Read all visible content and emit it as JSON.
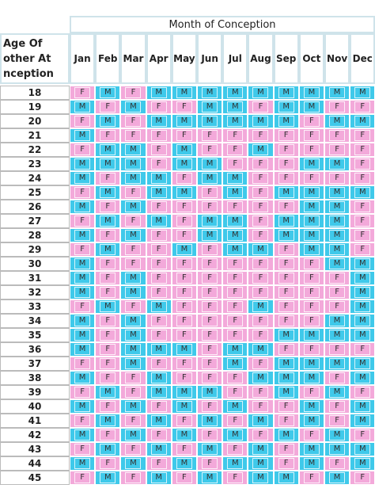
{
  "table": {
    "title": "Month of Conception",
    "corner": [
      "Age Of",
      "other At",
      "nception"
    ],
    "months": [
      "Jan",
      "Feb",
      "Mar",
      "Apr",
      "May",
      "Jun",
      "Jul",
      "Aug",
      "Sep",
      "Oct",
      "Nov",
      "Dec"
    ],
    "rows": [
      {
        "age": "18",
        "cells": [
          "F",
          "M",
          "F",
          "M",
          "M",
          "M",
          "M",
          "M",
          "M",
          "M",
          "M",
          "M"
        ]
      },
      {
        "age": "19",
        "cells": [
          "M",
          "F",
          "M",
          "F",
          "F",
          "M",
          "M",
          "F",
          "M",
          "M",
          "F",
          "F"
        ]
      },
      {
        "age": "20",
        "cells": [
          "F",
          "M",
          "F",
          "M",
          "M",
          "M",
          "M",
          "M",
          "M",
          "F",
          "M",
          "M"
        ]
      },
      {
        "age": "21",
        "cells": [
          "M",
          "F",
          "F",
          "F",
          "F",
          "F",
          "F",
          "F",
          "F",
          "F",
          "F",
          "F"
        ]
      },
      {
        "age": "22",
        "cells": [
          "F",
          "M",
          "M",
          "F",
          "M",
          "F",
          "F",
          "M",
          "F",
          "F",
          "F",
          "F"
        ]
      },
      {
        "age": "23",
        "cells": [
          "M",
          "M",
          "M",
          "F",
          "M",
          "M",
          "F",
          "F",
          "F",
          "M",
          "M",
          "F"
        ]
      },
      {
        "age": "24",
        "cells": [
          "M",
          "F",
          "M",
          "M",
          "F",
          "M",
          "M",
          "F",
          "F",
          "F",
          "F",
          "F"
        ]
      },
      {
        "age": "25",
        "cells": [
          "F",
          "M",
          "F",
          "M",
          "M",
          "F",
          "M",
          "F",
          "M",
          "M",
          "M",
          "M"
        ]
      },
      {
        "age": "26",
        "cells": [
          "M",
          "F",
          "M",
          "F",
          "F",
          "F",
          "F",
          "F",
          "F",
          "M",
          "M",
          "F"
        ]
      },
      {
        "age": "27",
        "cells": [
          "F",
          "M",
          "F",
          "M",
          "F",
          "M",
          "M",
          "F",
          "M",
          "M",
          "M",
          "F"
        ]
      },
      {
        "age": "28",
        "cells": [
          "M",
          "F",
          "M",
          "F",
          "F",
          "M",
          "M",
          "F",
          "M",
          "M",
          "M",
          "F"
        ]
      },
      {
        "age": "29",
        "cells": [
          "F",
          "M",
          "F",
          "F",
          "M",
          "F",
          "M",
          "M",
          "F",
          "M",
          "M",
          "F"
        ]
      },
      {
        "age": "30",
        "cells": [
          "M",
          "F",
          "F",
          "F",
          "F",
          "F",
          "F",
          "F",
          "F",
          "F",
          "M",
          "M"
        ]
      },
      {
        "age": "31",
        "cells": [
          "M",
          "F",
          "M",
          "F",
          "F",
          "F",
          "F",
          "F",
          "F",
          "F",
          "F",
          "M"
        ]
      },
      {
        "age": "32",
        "cells": [
          "M",
          "F",
          "M",
          "F",
          "F",
          "F",
          "F",
          "F",
          "F",
          "F",
          "F",
          "M"
        ]
      },
      {
        "age": "33",
        "cells": [
          "F",
          "M",
          "F",
          "M",
          "F",
          "F",
          "F",
          "M",
          "F",
          "F",
          "F",
          "M"
        ]
      },
      {
        "age": "34",
        "cells": [
          "M",
          "F",
          "M",
          "F",
          "F",
          "F",
          "F",
          "F",
          "F",
          "F",
          "M",
          "M"
        ]
      },
      {
        "age": "35",
        "cells": [
          "M",
          "F",
          "M",
          "F",
          "F",
          "F",
          "F",
          "F",
          "M",
          "M",
          "M",
          "M"
        ]
      },
      {
        "age": "36",
        "cells": [
          "M",
          "F",
          "M",
          "M",
          "M",
          "F",
          "M",
          "M",
          "F",
          "F",
          "F",
          "F"
        ]
      },
      {
        "age": "37",
        "cells": [
          "F",
          "F",
          "M",
          "F",
          "F",
          "F",
          "M",
          "F",
          "M",
          "M",
          "M",
          "M"
        ]
      },
      {
        "age": "38",
        "cells": [
          "M",
          "F",
          "F",
          "M",
          "F",
          "F",
          "F",
          "M",
          "M",
          "M",
          "F",
          "M"
        ]
      },
      {
        "age": "39",
        "cells": [
          "F",
          "M",
          "F",
          "M",
          "M",
          "M",
          "F",
          "F",
          "M",
          "F",
          "M",
          "F"
        ]
      },
      {
        "age": "40",
        "cells": [
          "M",
          "F",
          "M",
          "F",
          "M",
          "F",
          "M",
          "F",
          "F",
          "M",
          "F",
          "M"
        ]
      },
      {
        "age": "41",
        "cells": [
          "F",
          "M",
          "F",
          "M",
          "F",
          "M",
          "F",
          "M",
          "F",
          "M",
          "F",
          "M"
        ]
      },
      {
        "age": "42",
        "cells": [
          "M",
          "F",
          "M",
          "F",
          "M",
          "F",
          "M",
          "F",
          "M",
          "F",
          "M",
          "F"
        ]
      },
      {
        "age": "43",
        "cells": [
          "F",
          "M",
          "F",
          "M",
          "F",
          "M",
          "F",
          "M",
          "F",
          "M",
          "M",
          "M"
        ]
      },
      {
        "age": "44",
        "cells": [
          "M",
          "F",
          "M",
          "F",
          "M",
          "F",
          "M",
          "M",
          "F",
          "M",
          "F",
          "M"
        ]
      },
      {
        "age": "45",
        "cells": [
          "F",
          "M",
          "F",
          "M",
          "F",
          "M",
          "F",
          "M",
          "M",
          "F",
          "M",
          "F"
        ]
      }
    ]
  }
}
